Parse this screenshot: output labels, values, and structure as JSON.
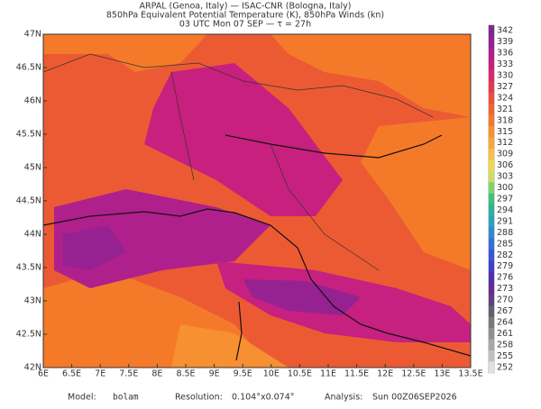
{
  "header": {
    "line1": "ARPAL (Genoa, Italy)  —  ISAC-CNR (Bologna, Italy)",
    "line2": "850hPa Equivalent Potential Temperature (K), 850hPa Winds (kn)",
    "line3": "03 UTC Mon 07 SEP  —  τ = 27h"
  },
  "lon_ticks": [
    "6E",
    "6.5E",
    "7E",
    "7.5E",
    "8E",
    "8.5E",
    "9E",
    "9.5E",
    "10E",
    "10.5E",
    "11E",
    "11.5E",
    "12E",
    "12.5E",
    "13E",
    "13.5E"
  ],
  "lat_ticks": [
    "47N",
    "46.5N",
    "46N",
    "45.5N",
    "45N",
    "44.5N",
    "44N",
    "43.5N",
    "43N",
    "42.5N",
    "42N"
  ],
  "colorbar": {
    "values": [
      342,
      339,
      336,
      333,
      330,
      327,
      324,
      321,
      318,
      315,
      312,
      309,
      306,
      303,
      300,
      297,
      294,
      291,
      288,
      285,
      282,
      279,
      276,
      273,
      270,
      267,
      264,
      261,
      258,
      255,
      252
    ],
    "colors": [
      "#7a2a8e",
      "#962292",
      "#b0208c",
      "#c62080",
      "#d82a6a",
      "#e43a54",
      "#ec4f3e",
      "#f0652f",
      "#f47a2a",
      "#f79030",
      "#f9a838",
      "#fac042",
      "#f2d84a",
      "#c8e060",
      "#7fd36a",
      "#3cc27a",
      "#2fb0a0",
      "#30a0c0",
      "#3088d0",
      "#3070d8",
      "#3658d8",
      "#4040c8",
      "#5030b0",
      "#6a2a98",
      "#604080",
      "#606070",
      "#787878",
      "#909090",
      "#a8a8a8",
      "#c0c0c0",
      "#e0e0e0"
    ]
  },
  "footer": {
    "model_label": "Model:",
    "model": "bolam",
    "resolution_label": "Resolution:",
    "resolution": "0.104°x0.074°",
    "analysis_label": "Analysis:",
    "analysis": "Sun 00Z06SEP2026"
  }
}
